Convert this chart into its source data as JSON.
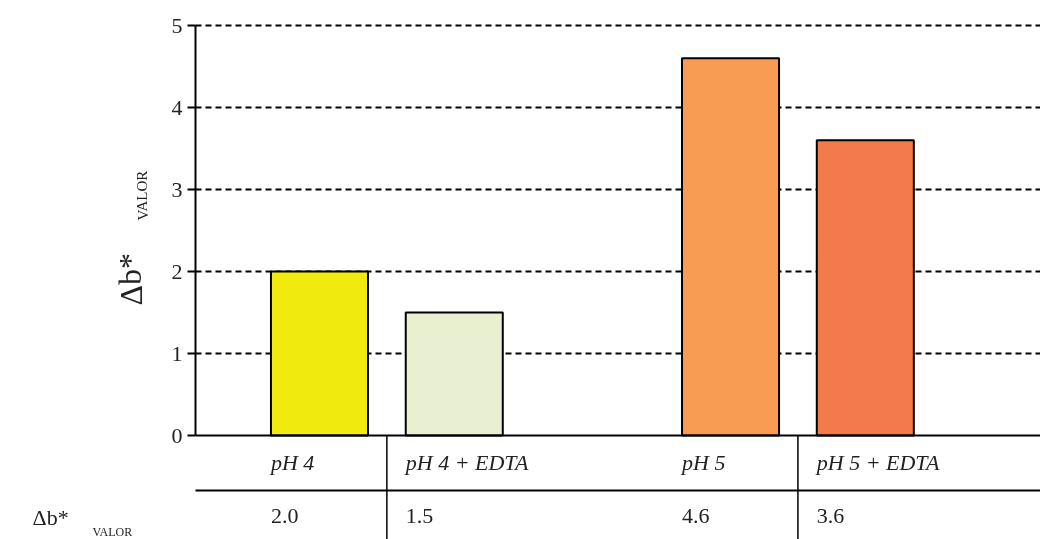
{
  "chart_data": {
    "type": "bar",
    "ylabel": "Δb*$_{VALOR}$",
    "categories": [
      "pH 4",
      "pH 4 + EDTA",
      "pH 5",
      "pH 5 + EDTA"
    ],
    "values": [
      2.0,
      1.5,
      4.6,
      3.6
    ],
    "colors": [
      "#f0ea0f",
      "#e9f0d2",
      "#f79c52",
      "#f27a4c"
    ],
    "ylim": [
      0,
      5
    ],
    "yticks": [
      0,
      1,
      2,
      3,
      4,
      5
    ],
    "grid": "y",
    "value_labels": [
      "2.0",
      "1.5",
      "4.6",
      "3.6"
    ]
  }
}
